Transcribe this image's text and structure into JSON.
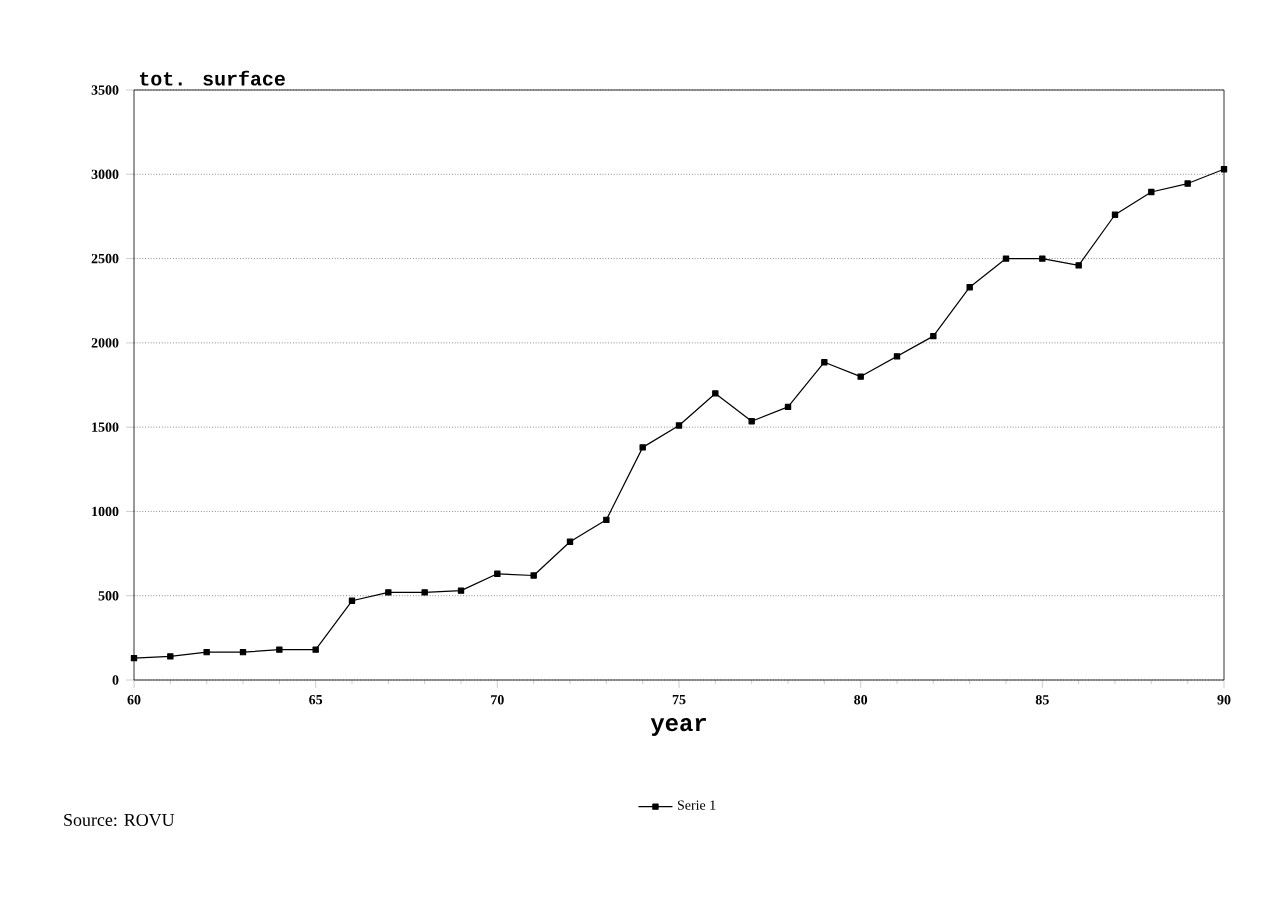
{
  "chart_data": {
    "type": "line",
    "ylabel": "tot. surface",
    "xlabel": "year",
    "x": [
      60,
      61,
      62,
      63,
      64,
      65,
      66,
      67,
      68,
      69,
      70,
      71,
      72,
      73,
      74,
      75,
      76,
      77,
      78,
      79,
      80,
      81,
      82,
      83,
      84,
      85,
      86,
      87,
      88,
      89,
      90
    ],
    "series": [
      {
        "name": "Serie  1",
        "color": "#000000",
        "values": [
          130,
          140,
          165,
          165,
          180,
          180,
          470,
          520,
          520,
          530,
          630,
          620,
          820,
          950,
          1380,
          1510,
          1700,
          1535,
          1620,
          1885,
          1800,
          1920,
          2040,
          2330,
          2500,
          2500,
          2460,
          2760,
          2895,
          2945,
          3030
        ]
      }
    ],
    "xlim": [
      60,
      90
    ],
    "xticks": [
      60,
      65,
      70,
      75,
      80,
      85,
      90
    ],
    "ylim": [
      0,
      3500
    ],
    "yticks": [
      0,
      500,
      1000,
      1500,
      2000,
      2500,
      3000,
      3500
    ],
    "grid": "y",
    "legend": "bottom",
    "marker": "square",
    "line_style": "solid",
    "annotations": [
      "Source: ROVU"
    ]
  }
}
